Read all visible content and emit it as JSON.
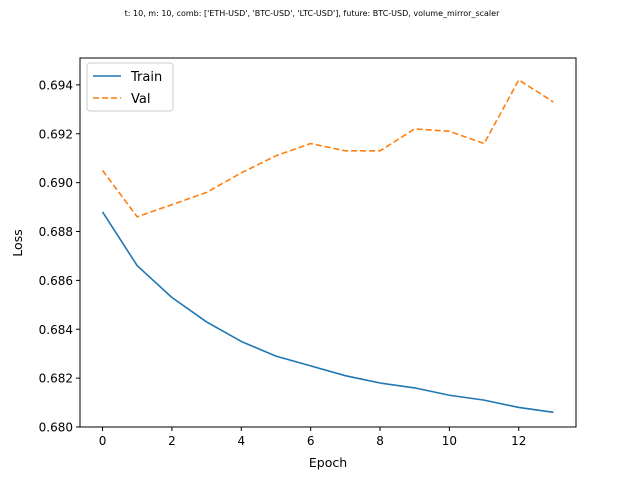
{
  "chart_data": {
    "type": "line",
    "title": "t: 10, m: 10, comb: ['ETH-USD', 'BTC-USD', 'LTC-USD'], future: BTC-USD, volume_mirror_scaler",
    "xlabel": "Epoch",
    "ylabel": "Loss",
    "xlim": [
      -0.65,
      13.65
    ],
    "ylim": [
      0.68,
      0.6951
    ],
    "xticks": [
      0,
      2,
      4,
      6,
      8,
      10,
      12
    ],
    "yticks": [
      0.68,
      0.682,
      0.684,
      0.686,
      0.688,
      0.69,
      0.692,
      0.694
    ],
    "ytick_labels": [
      "0.680",
      "0.682",
      "0.684",
      "0.686",
      "0.688",
      "0.690",
      "0.692",
      "0.694"
    ],
    "grid": false,
    "legend_position": "top-left",
    "x": [
      0,
      1,
      2,
      3,
      4,
      5,
      6,
      7,
      8,
      9,
      10,
      11,
      12,
      13
    ],
    "series": [
      {
        "name": "Train",
        "color": "#1f77b4",
        "style": "solid",
        "values": [
          0.6888,
          0.6866,
          0.6853,
          0.6843,
          0.6835,
          0.6829,
          0.6825,
          0.6821,
          0.6818,
          0.6816,
          0.6813,
          0.6811,
          0.6808,
          0.6806
        ]
      },
      {
        "name": "Val",
        "color": "#ff7f0e",
        "style": "dashed",
        "values": [
          0.6905,
          0.6886,
          0.6891,
          0.6896,
          0.6904,
          0.6911,
          0.6916,
          0.6913,
          0.6913,
          0.6922,
          0.6921,
          0.6916,
          0.6942,
          0.6933
        ]
      }
    ]
  }
}
